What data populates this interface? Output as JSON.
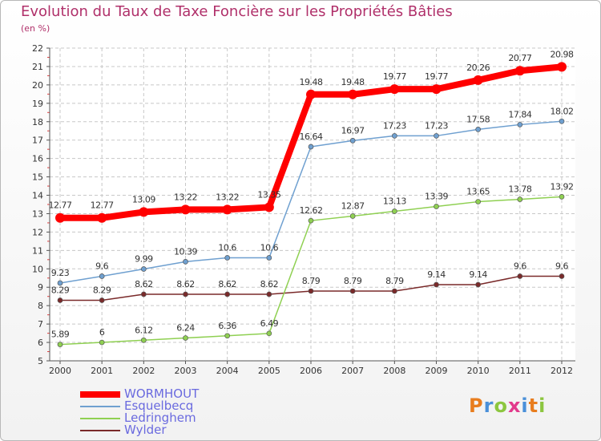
{
  "title": "Evolution du Taux de Taxe Foncière sur les Propriétés Bâties",
  "subtitle": "(en %)",
  "logo": "Proxiti",
  "chart_data": {
    "type": "line",
    "title": "Evolution du Taux de Taxe Foncière sur les Propriétés Bâties",
    "ylabel": "(en %)",
    "xlabel": "",
    "ylim": [
      5,
      22
    ],
    "grid": true,
    "legend_position": "bottom-left",
    "x": [
      "2000",
      "2001",
      "2002",
      "2003",
      "2004",
      "2005",
      "2006",
      "2007",
      "2008",
      "2009",
      "2010",
      "2011",
      "2012"
    ],
    "series": [
      {
        "name": "WORMHOUT",
        "color": "#ff0000",
        "values": [
          12.77,
          12.77,
          13.09,
          13.22,
          13.22,
          13.35,
          19.48,
          19.48,
          19.77,
          19.77,
          20.26,
          20.77,
          20.98
        ],
        "labels": [
          "12.77",
          "12.77",
          "13.09",
          "13.22",
          "13.22",
          "13.35",
          "19.48",
          "19.48",
          "19.77",
          "19.77",
          "20.26",
          "20.77",
          "20.98"
        ]
      },
      {
        "name": "Esquelbecq",
        "color": "#6fa0d0",
        "values": [
          9.23,
          9.6,
          9.99,
          10.39,
          10.6,
          10.6,
          16.64,
          16.97,
          17.23,
          17.23,
          17.58,
          17.84,
          18.02
        ],
        "labels": [
          "9.23",
          "9.6",
          "9.99",
          "10.39",
          "10.6",
          "10.6",
          "16.64",
          "16.97",
          "17.23",
          "17.23",
          "17.58",
          "17.84",
          "18.02"
        ]
      },
      {
        "name": "Ledringhem",
        "color": "#8fd052",
        "values": [
          5.89,
          6,
          6.12,
          6.24,
          6.36,
          6.49,
          12.62,
          12.87,
          13.13,
          13.39,
          13.65,
          13.78,
          13.92
        ],
        "labels": [
          "5.89",
          "6",
          "6.12",
          "6.24",
          "6.36",
          "6.49",
          "12.62",
          "12.87",
          "13.13",
          "13.39",
          "13.65",
          "13.78",
          "13.92"
        ]
      },
      {
        "name": "Wylder",
        "color": "#7a2a2a",
        "values": [
          8.29,
          8.29,
          8.62,
          8.62,
          8.62,
          8.62,
          8.79,
          8.79,
          8.79,
          9.14,
          9.14,
          9.6,
          9.6
        ],
        "labels": [
          "8.29",
          "8.29",
          "8.62",
          "8.62",
          "8.62",
          "8.62",
          "8.79",
          "8.79",
          "8.79",
          "9.14",
          "9.14",
          "9.6",
          "9.6"
        ]
      }
    ]
  }
}
